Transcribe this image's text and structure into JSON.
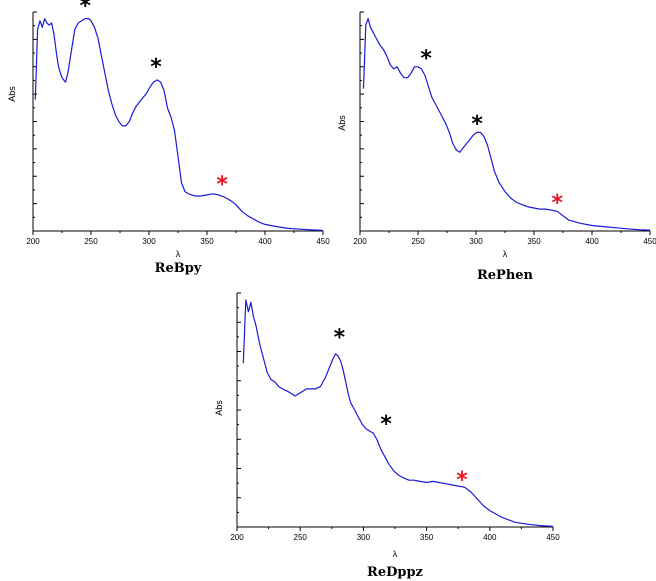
{
  "colors": {
    "line": "#1a1adb",
    "marker": "#000000",
    "marker_highlight": "#e8141e"
  },
  "chart_data": [
    {
      "type": "line",
      "name": "ReBpy",
      "xlabel": "λ",
      "ylabel": "Abs",
      "xlim": [
        200,
        450
      ],
      "xticks": [
        200,
        250,
        300,
        350,
        400,
        450
      ],
      "ylim": [
        0,
        1
      ],
      "y_tick_labels": false,
      "series": [
        {
          "x": [
            202,
            204,
            206,
            208,
            210,
            212,
            214,
            216,
            218,
            220,
            222,
            225,
            228,
            230,
            233,
            236,
            239,
            242,
            245,
            248,
            250,
            253,
            256,
            259,
            262,
            265,
            268,
            271,
            274,
            277,
            280,
            283,
            286,
            289,
            292,
            295,
            298,
            301,
            304,
            307,
            310,
            313,
            316,
            319,
            322,
            325,
            328,
            331,
            334,
            337,
            340,
            345,
            350,
            355,
            360,
            365,
            370,
            375,
            380,
            385,
            390,
            395,
            400,
            410,
            420,
            430,
            440,
            450
          ],
          "y": [
            0.6,
            0.92,
            0.96,
            0.93,
            0.97,
            0.95,
            0.94,
            0.95,
            0.9,
            0.82,
            0.75,
            0.7,
            0.68,
            0.72,
            0.82,
            0.92,
            0.95,
            0.96,
            0.97,
            0.97,
            0.96,
            0.93,
            0.88,
            0.8,
            0.72,
            0.64,
            0.58,
            0.53,
            0.5,
            0.48,
            0.48,
            0.5,
            0.54,
            0.57,
            0.59,
            0.61,
            0.63,
            0.66,
            0.68,
            0.69,
            0.68,
            0.64,
            0.56,
            0.52,
            0.46,
            0.34,
            0.22,
            0.18,
            0.17,
            0.165,
            0.16,
            0.16,
            0.165,
            0.17,
            0.165,
            0.155,
            0.14,
            0.12,
            0.09,
            0.07,
            0.055,
            0.04,
            0.03,
            0.02,
            0.012,
            0.008,
            0.005,
            0.003
          ]
        }
      ],
      "annotations": [
        {
          "text": "*",
          "x": 245,
          "y": 1.06,
          "highlight": false
        },
        {
          "text": "*",
          "x": 306,
          "y": 0.78,
          "highlight": false
        },
        {
          "text": "*",
          "x": 363,
          "y": 0.245,
          "highlight": true
        }
      ]
    },
    {
      "type": "line",
      "name": "RePhen",
      "xlabel": "λ",
      "ylabel": "Abs",
      "xlim": [
        200,
        450
      ],
      "xticks": [
        200,
        250,
        300,
        350,
        400,
        450
      ],
      "ylim": [
        0,
        1
      ],
      "y_tick_labels": false,
      "series": [
        {
          "x": [
            203,
            205,
            207,
            209,
            211,
            213,
            215,
            217,
            220,
            223,
            226,
            229,
            232,
            235,
            238,
            241,
            244,
            247,
            250,
            253,
            256,
            259,
            262,
            265,
            268,
            271,
            274,
            277,
            280,
            283,
            286,
            289,
            292,
            295,
            298,
            301,
            304,
            307,
            310,
            313,
            316,
            320,
            325,
            330,
            335,
            340,
            345,
            350,
            355,
            360,
            365,
            370,
            375,
            380,
            390,
            400,
            410,
            420,
            430,
            440,
            450
          ],
          "y": [
            0.65,
            0.94,
            0.97,
            0.93,
            0.91,
            0.89,
            0.87,
            0.85,
            0.83,
            0.8,
            0.76,
            0.74,
            0.75,
            0.72,
            0.7,
            0.7,
            0.72,
            0.75,
            0.75,
            0.74,
            0.71,
            0.66,
            0.61,
            0.58,
            0.55,
            0.52,
            0.49,
            0.45,
            0.4,
            0.37,
            0.36,
            0.38,
            0.4,
            0.42,
            0.44,
            0.45,
            0.45,
            0.43,
            0.39,
            0.33,
            0.27,
            0.22,
            0.18,
            0.15,
            0.13,
            0.12,
            0.11,
            0.105,
            0.1,
            0.1,
            0.095,
            0.09,
            0.07,
            0.05,
            0.035,
            0.025,
            0.02,
            0.015,
            0.01,
            0.006,
            0.004
          ]
        }
      ],
      "annotations": [
        {
          "text": "*",
          "x": 257,
          "y": 0.82,
          "highlight": false
        },
        {
          "text": "*",
          "x": 301,
          "y": 0.52,
          "highlight": false
        },
        {
          "text": "*",
          "x": 370,
          "y": 0.16,
          "highlight": true
        }
      ]
    },
    {
      "type": "line",
      "name": "ReDppz",
      "xlabel": "λ",
      "ylabel": "Abs",
      "xlim": [
        200,
        450
      ],
      "xticks": [
        200,
        250,
        300,
        350,
        400,
        450
      ],
      "ylim": [
        0,
        1
      ],
      "y_tick_labels": false,
      "series": [
        {
          "x": [
            205,
            207,
            209,
            211,
            213,
            215,
            218,
            221,
            224,
            227,
            230,
            233,
            236,
            240,
            243,
            246,
            249,
            252,
            255,
            258,
            262,
            266,
            270,
            273,
            276,
            278,
            280,
            282,
            284,
            286,
            288,
            290,
            293,
            296,
            299,
            302,
            305,
            308,
            311,
            314,
            317,
            320,
            324,
            328,
            332,
            336,
            340,
            345,
            350,
            355,
            360,
            365,
            370,
            375,
            380,
            385,
            390,
            395,
            400,
            410,
            420,
            430,
            440,
            450
          ],
          "y": [
            0.7,
            0.97,
            0.92,
            0.96,
            0.9,
            0.86,
            0.78,
            0.72,
            0.66,
            0.63,
            0.62,
            0.6,
            0.59,
            0.58,
            0.57,
            0.56,
            0.57,
            0.58,
            0.59,
            0.59,
            0.59,
            0.6,
            0.64,
            0.68,
            0.72,
            0.74,
            0.73,
            0.71,
            0.67,
            0.62,
            0.57,
            0.53,
            0.5,
            0.47,
            0.44,
            0.42,
            0.41,
            0.4,
            0.37,
            0.33,
            0.3,
            0.27,
            0.24,
            0.22,
            0.21,
            0.2,
            0.2,
            0.195,
            0.19,
            0.195,
            0.19,
            0.185,
            0.18,
            0.175,
            0.17,
            0.15,
            0.12,
            0.09,
            0.07,
            0.04,
            0.02,
            0.012,
            0.006,
            0.003
          ]
        }
      ],
      "annotations": [
        {
          "text": "*",
          "x": 281,
          "y": 0.84,
          "highlight": false
        },
        {
          "text": "*",
          "x": 318,
          "y": 0.47,
          "highlight": false
        },
        {
          "text": "*",
          "x": 378,
          "y": 0.23,
          "highlight": true
        }
      ]
    }
  ]
}
